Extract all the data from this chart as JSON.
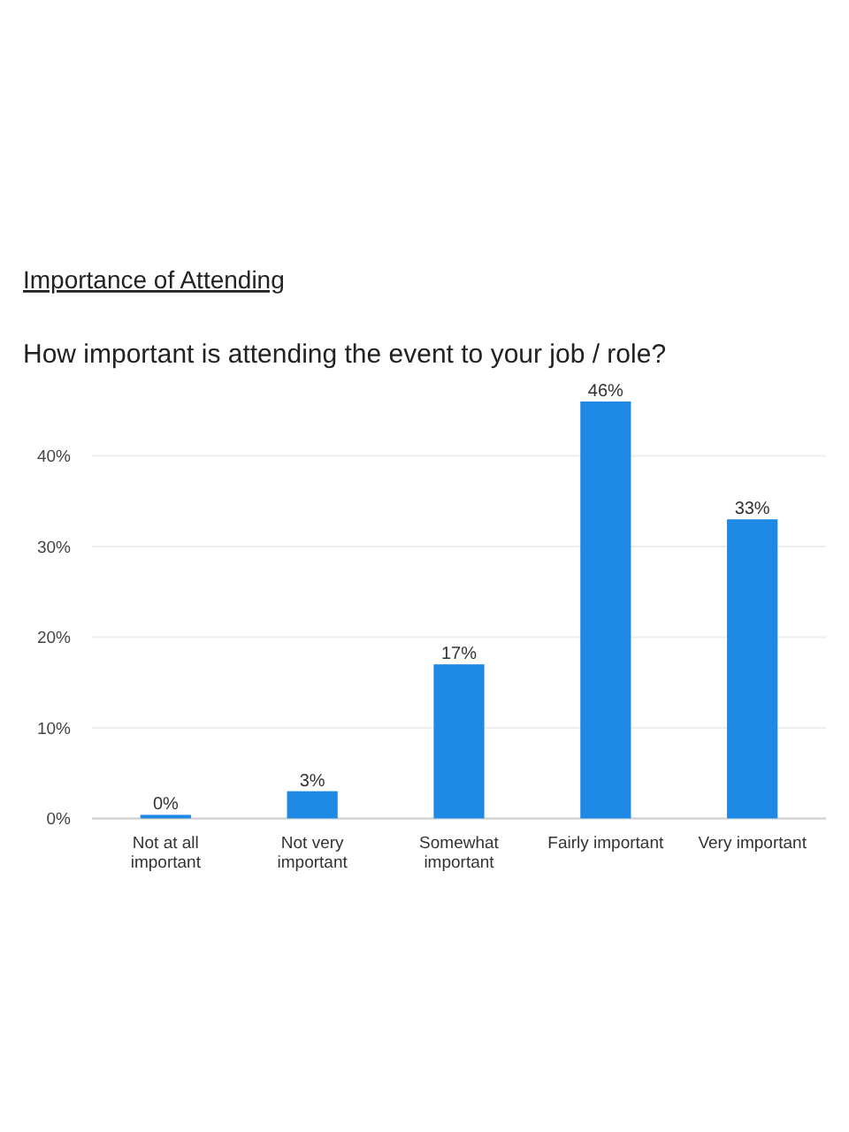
{
  "chart_data": {
    "type": "bar",
    "title": "Importance of Attending",
    "subtitle": "How important is attending the event to your job / role?",
    "categories": [
      "Not at all important",
      "Not very important",
      "Somewhat important",
      "Fairly important",
      "Very important"
    ],
    "values": [
      0,
      3,
      17,
      46,
      33
    ],
    "value_labels": [
      "0%",
      "3%",
      "17%",
      "46%",
      "33%"
    ],
    "color": "#1e88e5",
    "ylim": [
      0,
      46
    ],
    "yticks": [
      {
        "value": 0,
        "label": "0%"
      },
      {
        "value": 10,
        "label": "10%"
      },
      {
        "value": 20,
        "label": "20%"
      },
      {
        "value": 30,
        "label": "30%"
      },
      {
        "value": 40,
        "label": "40%"
      }
    ],
    "grid": "y"
  }
}
